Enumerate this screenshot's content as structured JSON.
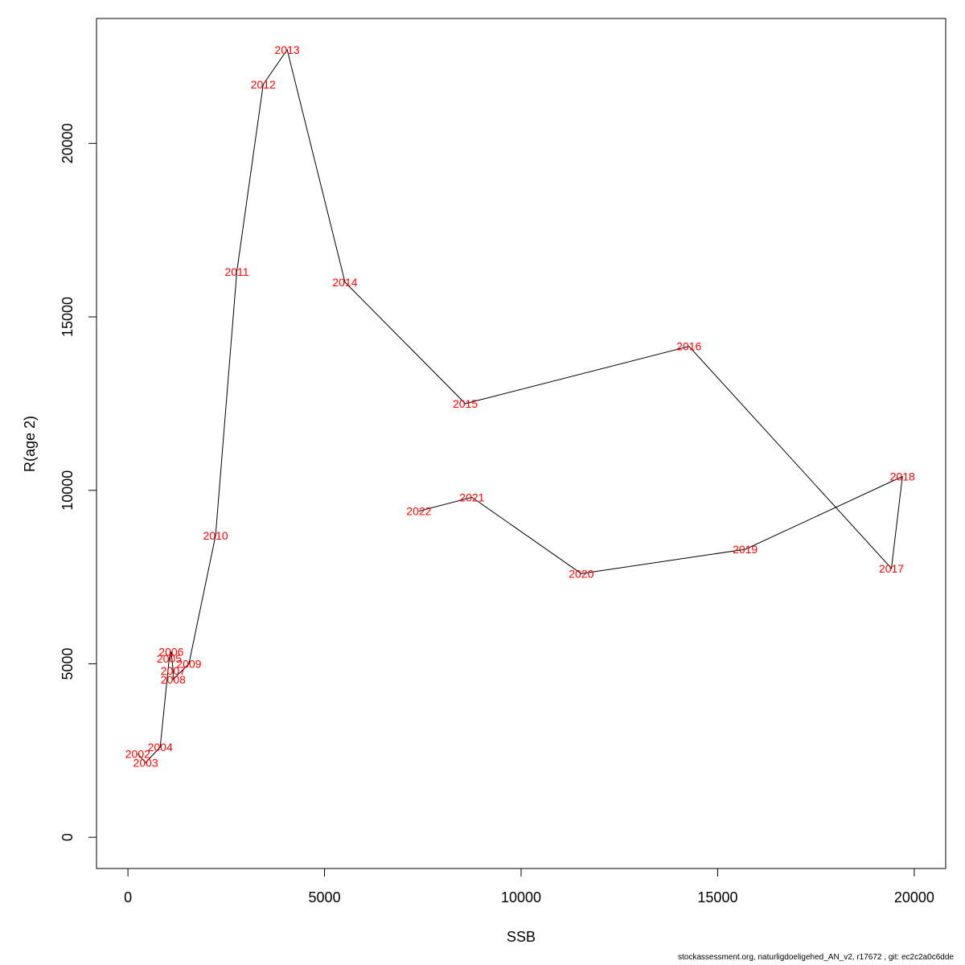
{
  "chart_data": {
    "type": "line",
    "xlabel": "SSB",
    "ylabel": "R(age 2)",
    "xlim": [
      -800,
      20800
    ],
    "ylim": [
      -900,
      23600
    ],
    "xticks": [
      0,
      5000,
      10000,
      15000,
      20000
    ],
    "yticks": [
      0,
      5000,
      10000,
      15000,
      20000
    ],
    "grid": false,
    "line_color": "#000000",
    "label_color": "#ff0000",
    "points": [
      {
        "label": "2002",
        "x": 250,
        "y": 2400
      },
      {
        "label": "2003",
        "x": 450,
        "y": 2150
      },
      {
        "label": "2004",
        "x": 820,
        "y": 2600
      },
      {
        "label": "2005",
        "x": 1050,
        "y": 5150
      },
      {
        "label": "2006",
        "x": 1100,
        "y": 5350
      },
      {
        "label": "2007",
        "x": 1150,
        "y": 4800
      },
      {
        "label": "2008",
        "x": 1150,
        "y": 4550
      },
      {
        "label": "2009",
        "x": 1550,
        "y": 5000
      },
      {
        "label": "2010",
        "x": 2230,
        "y": 8700
      },
      {
        "label": "2011",
        "x": 2770,
        "y": 16300
      },
      {
        "label": "2012",
        "x": 3440,
        "y": 21700
      },
      {
        "label": "2013",
        "x": 4050,
        "y": 22700
      },
      {
        "label": "2014",
        "x": 5520,
        "y": 16000
      },
      {
        "label": "2015",
        "x": 8580,
        "y": 12500
      },
      {
        "label": "2016",
        "x": 14270,
        "y": 14150
      },
      {
        "label": "2017",
        "x": 19420,
        "y": 7750
      },
      {
        "label": "2018",
        "x": 19700,
        "y": 10400
      },
      {
        "label": "2019",
        "x": 15700,
        "y": 8300
      },
      {
        "label": "2020",
        "x": 11530,
        "y": 7600
      },
      {
        "label": "2021",
        "x": 8750,
        "y": 9800
      },
      {
        "label": "2022",
        "x": 7400,
        "y": 9400
      }
    ]
  },
  "footer": {
    "text": "stockassessment.org, naturligdoeligehed_AN_v2, r17672 , git: ec2c2a0c6dde"
  }
}
